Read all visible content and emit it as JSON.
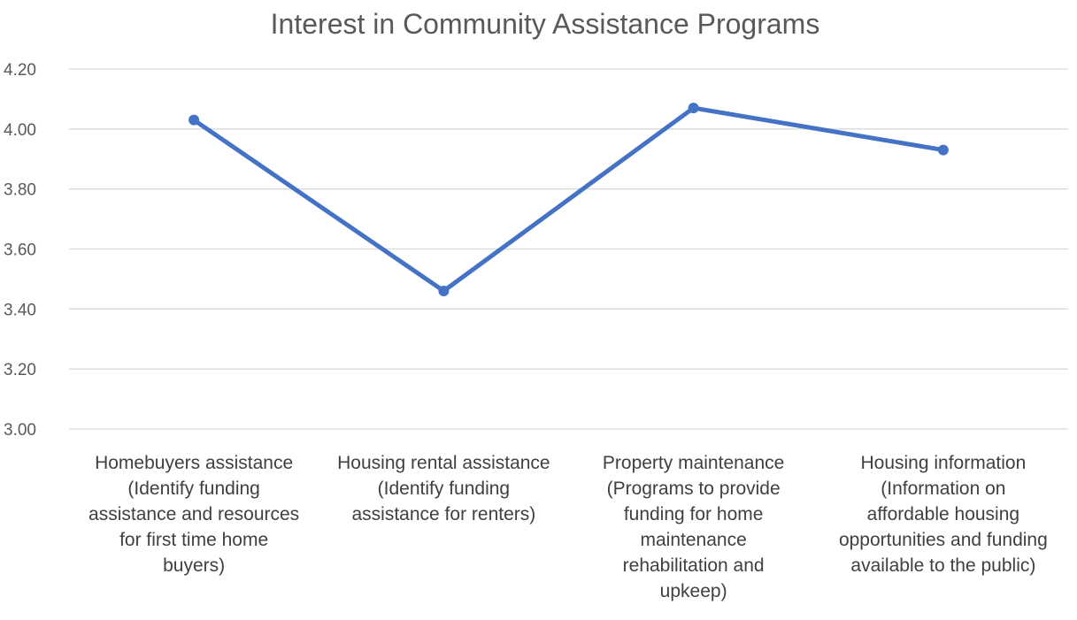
{
  "chart_data": {
    "type": "line",
    "title": "Interest in Community Assistance Programs",
    "xlabel": "",
    "ylabel": "",
    "ylim": [
      3.0,
      4.2
    ],
    "yticks": [
      "3.00",
      "3.20",
      "3.40",
      "3.60",
      "3.80",
      "4.00",
      "4.20"
    ],
    "grid": true,
    "legend": "none",
    "categories": [
      [
        "Homebuyers assistance",
        "(Identify funding",
        "assistance and resources",
        "for first time home",
        "buyers)"
      ],
      [
        "Housing rental assistance",
        "(Identify funding",
        "assistance for renters)"
      ],
      [
        "Property maintenance",
        "(Programs to provide",
        "funding for home",
        "maintenance",
        "rehabilitation and",
        "upkeep)"
      ],
      [
        "Housing information",
        "(Information on",
        "affordable housing",
        "opportunities and funding",
        "available to the public)"
      ]
    ],
    "series": [
      {
        "values": [
          4.03,
          3.46,
          4.07,
          3.93
        ],
        "color": "#4472c4"
      }
    ]
  }
}
